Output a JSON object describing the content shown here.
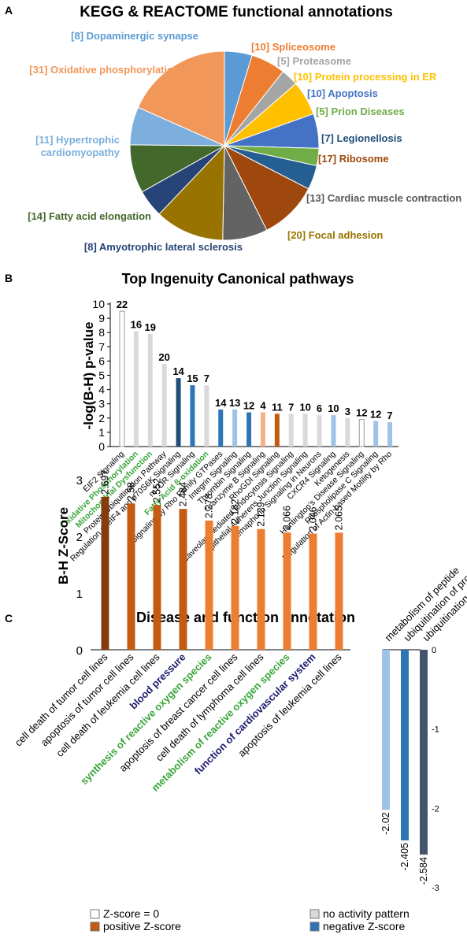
{
  "chart_data": [
    {
      "type": "pie",
      "panel": "A",
      "title": "KEGG & REACTOME functional annotations",
      "slices": [
        {
          "label": "[8] Dopaminergic synapse",
          "value": 8,
          "color": "#5b9bd5",
          "label_color": "#5b9bd5"
        },
        {
          "label": "[10] Spliceosome",
          "value": 10,
          "color": "#ed7d31",
          "label_color": "#ed7d31"
        },
        {
          "label": "[5] Proteasome",
          "value": 5,
          "color": "#a5a5a5",
          "label_color": "#a5a5a5"
        },
        {
          "label": "[10] Protein processing in ER",
          "value": 10,
          "color": "#ffc000",
          "label_color": "#ffc000"
        },
        {
          "label": "[10] Apoptosis",
          "value": 10,
          "color": "#4472c4",
          "label_color": "#4472c4"
        },
        {
          "label": "[5] Prion Diseases",
          "value": 5,
          "color": "#70ad47",
          "label_color": "#70ad47"
        },
        {
          "label": "[7] Legionellosis",
          "value": 7,
          "color": "#255e91",
          "label_color": "#1f4e79"
        },
        {
          "label": "[17] Ribosome",
          "value": 17,
          "color": "#9e480e",
          "label_color": "#9e480e"
        },
        {
          "label": "[13] Cardiac muscle contraction",
          "value": 13,
          "color": "#636363",
          "label_color": "#595959"
        },
        {
          "label": "[20] Focal adhesion",
          "value": 20,
          "color": "#997300",
          "label_color": "#997300"
        },
        {
          "label": "[8] Amyotrophic lateral sclerosis",
          "value": 8,
          "color": "#264478",
          "label_color": "#264478"
        },
        {
          "label": "[14] Fatty acid elongation",
          "value": 14,
          "color": "#43682b",
          "label_color": "#43682b"
        },
        {
          "label_lines": [
            "[11] Hypertrophic",
            "cardiomyopathy"
          ],
          "value": 11,
          "color": "#7cafdd",
          "label_color": "#7cafdd"
        },
        {
          "label": "[31] Oxidative phosphorylation",
          "value": 31,
          "color": "#f1975a",
          "label_color": "#f1975a"
        }
      ]
    },
    {
      "type": "bar",
      "panel": "B",
      "title": "Top Ingenuity Canonical pathways",
      "ylabel": "-log(B-H) p-value",
      "ylim": [
        0,
        10
      ],
      "yticks": [
        0,
        1,
        2,
        3,
        4,
        5,
        6,
        7,
        8,
        9,
        10
      ],
      "bars": [
        {
          "label": "EIF2 Signaling",
          "value": 9.5,
          "count": "22",
          "fill": "white",
          "label_color": "#000000"
        },
        {
          "label": "Oxidative Phosphorylation",
          "value": 8.1,
          "count": "16",
          "fill": "grey",
          "label_color": "#3aa53a"
        },
        {
          "label": "Mitochondrial Dysfunction",
          "value": 7.9,
          "count": "19",
          "fill": "grey",
          "label_color": "#3aa53a"
        },
        {
          "label": "Protein Ubiquitination Pathway",
          "value": 5.8,
          "count": "20",
          "fill": "grey",
          "label_color": "#000000"
        },
        {
          "label": "Regulation of eIF4 and p70S6K Signaling",
          "value": 4.8,
          "count": "14",
          "fill": "darkblue",
          "label_color": "#000000"
        },
        {
          "label": "mTOR Signaling",
          "value": 4.3,
          "count": "15",
          "fill": "midblue",
          "label_color": "#000000"
        },
        {
          "label": "Fatty Acid ß-oxidation",
          "value": 4.3,
          "count": "7",
          "fill": "grey",
          "label_color": "#3aa53a"
        },
        {
          "label": "Signaling by Rho Family GTPases",
          "value": 2.6,
          "count": "14",
          "fill": "midblue",
          "label_color": "#000000"
        },
        {
          "label": "Integrin Signaling",
          "value": 2.6,
          "count": "13",
          "fill": "lightblue",
          "label_color": "#000000"
        },
        {
          "label": "Thrombin Signaling",
          "value": 2.4,
          "count": "12",
          "fill": "midblue",
          "label_color": "#000000"
        },
        {
          "label": "Granzyme B Signaling",
          "value": 2.4,
          "count": "4",
          "fill": "lightorange",
          "label_color": "#000000"
        },
        {
          "label": "RhoGDI Signaling",
          "value": 2.3,
          "count": "11",
          "fill": "darkorange",
          "label_color": "#000000"
        },
        {
          "label": "Caveolar-mediated Endocytosis Signaling",
          "value": 2.3,
          "count": "7",
          "fill": "grey",
          "label_color": "#000000"
        },
        {
          "label": "Epithelial Adherens Junction Signaling",
          "value": 2.3,
          "count": "10",
          "fill": "grey",
          "label_color": "#000000"
        },
        {
          "label": "Semaphorin Signaling in Neurons",
          "value": 2.2,
          "count": "6",
          "fill": "grey",
          "label_color": "#000000"
        },
        {
          "label": "CXCR4 Signaling",
          "value": 2.2,
          "count": "10",
          "fill": "lightblue",
          "label_color": "#000000"
        },
        {
          "label": "Ketogenesis",
          "value": 2.0,
          "count": "3",
          "fill": "grey",
          "label_color": "#000000"
        },
        {
          "label": "Huntington's Disease Signaling",
          "value": 1.9,
          "count": "12",
          "fill": "white",
          "label_color": "#000000"
        },
        {
          "label": "Phospholipase C Signaling",
          "value": 1.8,
          "count": "12",
          "fill": "lightblue",
          "label_color": "#000000"
        },
        {
          "label": "Regulation of Actin-based Motility by Rho",
          "value": 1.7,
          "count": "7",
          "fill": "lightblue",
          "label_color": "#000000"
        }
      ]
    },
    {
      "type": "bar",
      "panel": "C",
      "title": "Disease and function annotation",
      "ylabel": "B-H Z-Score",
      "positive": {
        "ylim": [
          0,
          3
        ],
        "yticks": [
          0,
          1,
          2,
          3
        ],
        "bars": [
          {
            "label": "cell death of tumor cell lines",
            "value": 2.697,
            "value_label": "2.697",
            "fill": "darkorange",
            "label_color": "#000000"
          },
          {
            "label": "apoptosis of tumor cell lines",
            "value": 2.58,
            "value_label": "2.58",
            "fill": "darkorange",
            "label_color": "#000000"
          },
          {
            "label": "cell death of leukemia cell lines",
            "value": 2.552,
            "value_label": "2.552",
            "fill": "darkorange",
            "label_color": "#000000"
          },
          {
            "label": "blood pressure",
            "value": 2.484,
            "value_label": "2.484",
            "fill": "darkorange",
            "label_color": "#1c1a6e"
          },
          {
            "label": "synthesis of reactive oxygen species",
            "value": 2.278,
            "value_label": "2.278",
            "fill": "orange",
            "label_color": "#3aa53a"
          },
          {
            "label": "apoptosis of breast cancer cell lines",
            "value": 2.182,
            "value_label": "2.182",
            "fill": "orange",
            "label_color": "#000000"
          },
          {
            "label": "cell death of lymphoma cell lines",
            "value": 2.129,
            "value_label": "2.129",
            "fill": "orange",
            "label_color": "#000000"
          },
          {
            "label": "metabolism of reactive oxygen species",
            "value": 2.066,
            "value_label": "2.066",
            "fill": "orange",
            "label_color": "#3aa53a"
          },
          {
            "label": "function of cardiovascular system",
            "value": 2.046,
            "value_label": "2.046",
            "fill": "orange",
            "label_color": "#1c1a6e"
          },
          {
            "label": "apoptosis of leukemia cell lines",
            "value": 2.065,
            "value_label": "2.065",
            "fill": "orange",
            "label_color": "#000000"
          }
        ]
      },
      "negative": {
        "ylim": [
          -3,
          0
        ],
        "yticks": [
          0,
          -1,
          -2,
          -3
        ],
        "bars": [
          {
            "label": "metabolism of peptide",
            "value": -2.02,
            "value_label": "-2.02",
            "fill": "lightblue"
          },
          {
            "label": "ubiquitination of protein",
            "value": -2.405,
            "value_label": "-2.405",
            "fill": "midblue"
          },
          {
            "label": "ubiquitination",
            "value": -2.584,
            "value_label": "-2.584",
            "fill": "slate"
          }
        ]
      }
    }
  ],
  "panel_labels": {
    "a": "A",
    "b": "B",
    "c": "C"
  },
  "legend": [
    {
      "label": "Z-score = 0",
      "fill": "white"
    },
    {
      "label": "no activity pattern",
      "fill": "grey"
    },
    {
      "label": "positive Z-score",
      "fill": "darkorange"
    },
    {
      "label": "negative Z-score",
      "fill": "midblue"
    }
  ],
  "colors": {
    "white": "#ffffff",
    "grey": "#d9d9d9",
    "darkblue": "#1f4e79",
    "midblue": "#2e75b6",
    "lightblue": "#9dc3e6",
    "lightorange": "#f4b183",
    "darkorange": "#c55a11",
    "orange": "#ed7d31",
    "slate": "#44546a",
    "tumor_bar": "#843c0c"
  }
}
